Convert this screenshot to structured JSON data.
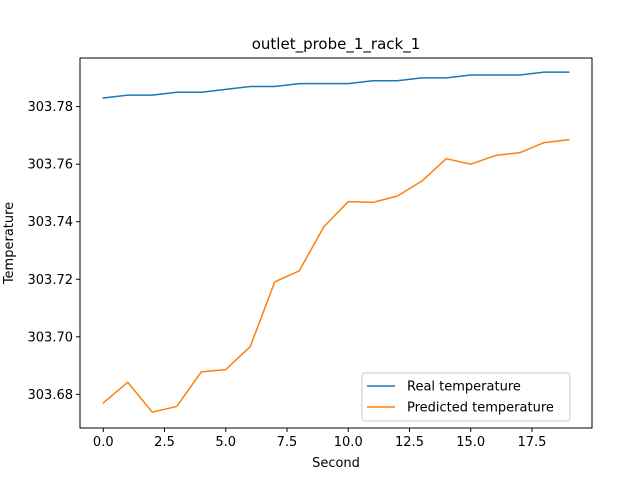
{
  "chart_data": {
    "type": "line",
    "title": "outlet_probe_1_rack_1",
    "xlabel": "Second",
    "ylabel": "Temperature",
    "xlim": [
      -0.95,
      19.95
    ],
    "ylim": [
      303.6683,
      303.7969
    ],
    "xticks": [
      0,
      2.5,
      5,
      7.5,
      10,
      12.5,
      15,
      17.5
    ],
    "xtick_labels": [
      "0.0",
      "2.5",
      "5.0",
      "7.5",
      "10.0",
      "12.5",
      "15.0",
      "17.5"
    ],
    "yticks": [
      303.68,
      303.7,
      303.72,
      303.74,
      303.76,
      303.78
    ],
    "ytick_labels": [
      "303.68",
      "303.70",
      "303.72",
      "303.74",
      "303.76",
      "303.78"
    ],
    "grid": false,
    "legend_position": "lower-right",
    "x": [
      0,
      1,
      2,
      3,
      4,
      5,
      6,
      7,
      8,
      9,
      10,
      11,
      12,
      13,
      14,
      15,
      16,
      17,
      18,
      19
    ],
    "series": [
      {
        "name": "Real temperature",
        "color": "#1f77b4",
        "values": [
          303.783,
          303.784,
          303.784,
          303.785,
          303.785,
          303.786,
          303.787,
          303.787,
          303.788,
          303.788,
          303.788,
          303.789,
          303.789,
          303.79,
          303.79,
          303.791,
          303.791,
          303.791,
          303.792,
          303.792
        ]
      },
      {
        "name": "Predicted temperature",
        "color": "#ff7f0e",
        "values": [
          303.677,
          303.6842,
          303.6738,
          303.6758,
          303.6878,
          303.6886,
          303.6966,
          303.7191,
          303.7229,
          303.7382,
          303.747,
          303.7467,
          303.7489,
          303.7541,
          303.7619,
          303.76,
          303.763,
          303.764,
          303.7675,
          303.7685
        ]
      }
    ]
  }
}
